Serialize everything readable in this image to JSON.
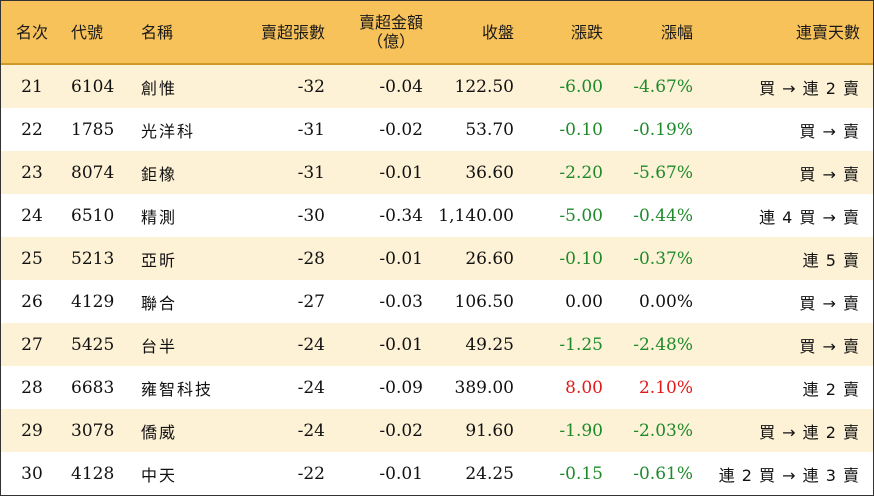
{
  "headers": {
    "rank": "名次",
    "code": "代號",
    "name": "名稱",
    "volume": "賣超張數",
    "amount_line1": "賣超金額",
    "amount_line2": "（億）",
    "close": "收盤",
    "change": "漲跌",
    "pct": "漲幅",
    "streak": "連賣天數"
  },
  "colors": {
    "header_bg": "#f8c25a",
    "odd_row_bg": "#fdf1d6",
    "down": "#1e8a2a",
    "up": "#e01a1a"
  },
  "rows": [
    {
      "rank": "21",
      "code": "6104",
      "name": "創惟",
      "volume": "-32",
      "amount": "-0.04",
      "close": "122.50",
      "change": "-6.00",
      "pct": "-4.67%",
      "streak": "買 → 連 2 賣",
      "trend": "down"
    },
    {
      "rank": "22",
      "code": "1785",
      "name": "光洋科",
      "volume": "-31",
      "amount": "-0.02",
      "close": "53.70",
      "change": "-0.10",
      "pct": "-0.19%",
      "streak": "買 → 賣",
      "trend": "down"
    },
    {
      "rank": "23",
      "code": "8074",
      "name": "鉅橡",
      "volume": "-31",
      "amount": "-0.01",
      "close": "36.60",
      "change": "-2.20",
      "pct": "-5.67%",
      "streak": "買 → 賣",
      "trend": "down"
    },
    {
      "rank": "24",
      "code": "6510",
      "name": "精測",
      "volume": "-30",
      "amount": "-0.34",
      "close": "1,140.00",
      "change": "-5.00",
      "pct": "-0.44%",
      "streak": "連 4 買 → 賣",
      "trend": "down"
    },
    {
      "rank": "25",
      "code": "5213",
      "name": "亞昕",
      "volume": "-28",
      "amount": "-0.01",
      "close": "26.60",
      "change": "-0.10",
      "pct": "-0.37%",
      "streak": "連 5 賣",
      "trend": "down"
    },
    {
      "rank": "26",
      "code": "4129",
      "name": "聯合",
      "volume": "-27",
      "amount": "-0.03",
      "close": "106.50",
      "change": "0.00",
      "pct": "0.00%",
      "streak": "買 → 賣",
      "trend": "flat"
    },
    {
      "rank": "27",
      "code": "5425",
      "name": "台半",
      "volume": "-24",
      "amount": "-0.01",
      "close": "49.25",
      "change": "-1.25",
      "pct": "-2.48%",
      "streak": "買 → 賣",
      "trend": "down"
    },
    {
      "rank": "28",
      "code": "6683",
      "name": "雍智科技",
      "volume": "-24",
      "amount": "-0.09",
      "close": "389.00",
      "change": "8.00",
      "pct": "2.10%",
      "streak": "連 2 賣",
      "trend": "up"
    },
    {
      "rank": "29",
      "code": "3078",
      "name": "僑威",
      "volume": "-24",
      "amount": "-0.02",
      "close": "91.60",
      "change": "-1.90",
      "pct": "-2.03%",
      "streak": "買 → 連 2 賣",
      "trend": "down"
    },
    {
      "rank": "30",
      "code": "4128",
      "name": "中天",
      "volume": "-22",
      "amount": "-0.01",
      "close": "24.25",
      "change": "-0.15",
      "pct": "-0.61%",
      "streak": "連 2 買 → 連 3 賣",
      "trend": "down"
    }
  ]
}
